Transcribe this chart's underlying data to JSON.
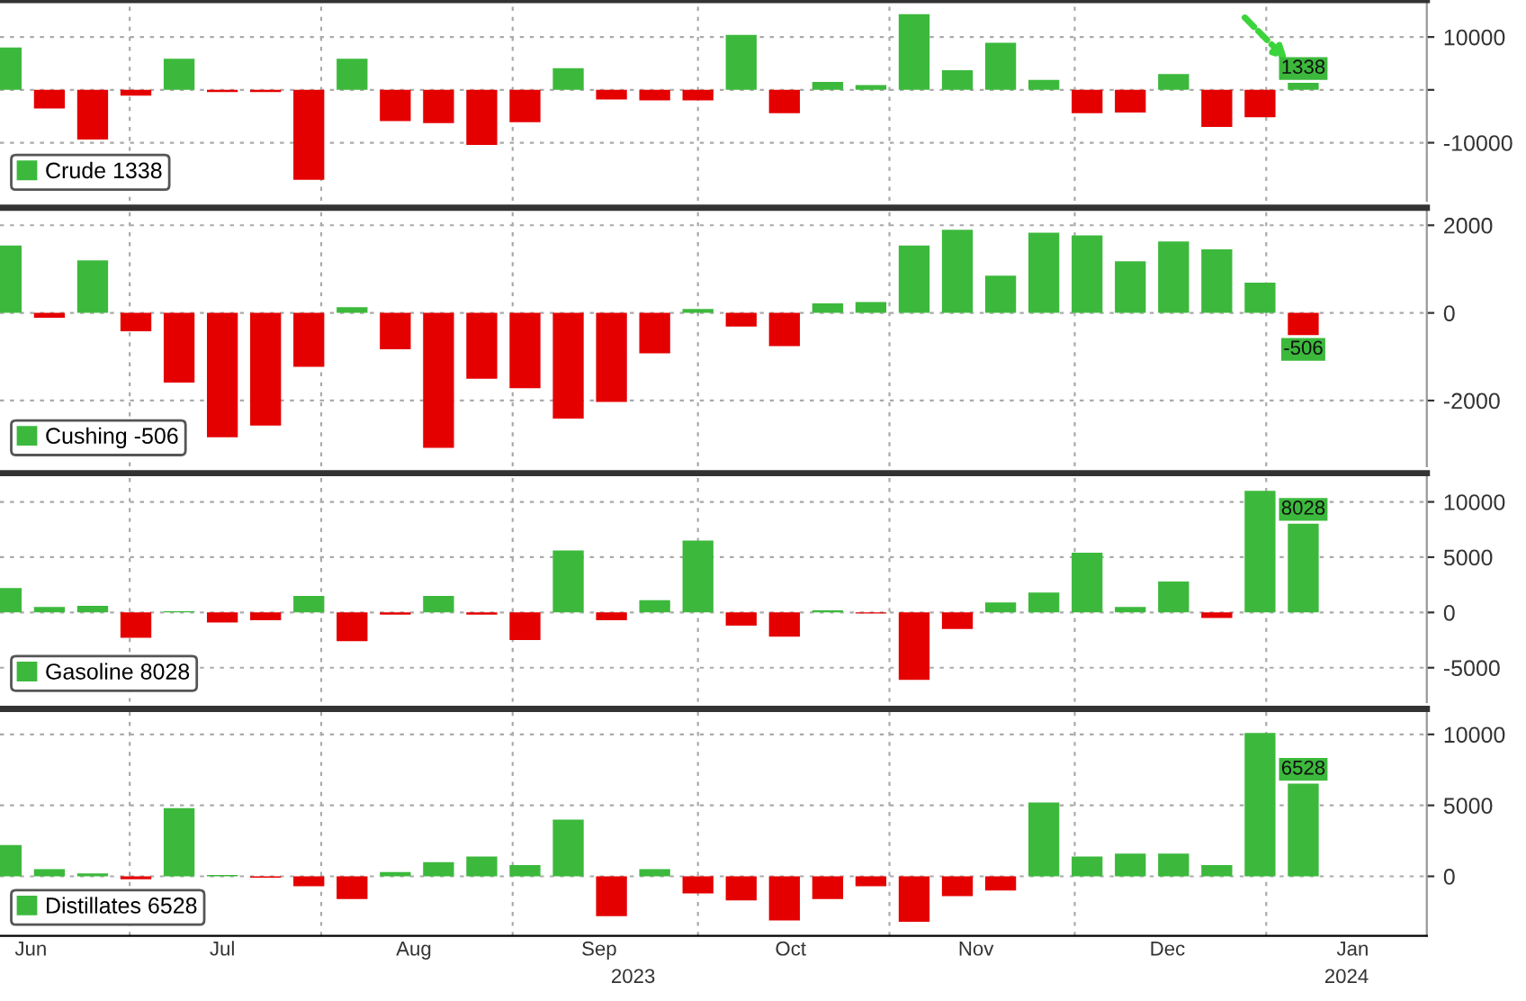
{
  "chart_data": [
    {
      "type": "bar",
      "x": [
        "2023-06-11",
        "2023-06-18",
        "2023-06-25",
        "2023-07-02",
        "2023-07-09",
        "2023-07-16",
        "2023-07-23",
        "2023-07-30",
        "2023-08-06",
        "2023-08-13",
        "2023-08-20",
        "2023-08-27",
        "2023-09-03",
        "2023-09-10",
        "2023-09-17",
        "2023-09-24",
        "2023-10-01",
        "2023-10-08",
        "2023-10-15",
        "2023-10-22",
        "2023-10-29",
        "2023-11-05",
        "2023-11-12",
        "2023-11-19",
        "2023-11-26",
        "2023-12-03",
        "2023-12-10",
        "2023-12-17",
        "2023-12-24",
        "2023-12-31",
        "2024-01-07"
      ],
      "series": [
        {
          "name": "Crude 1338",
          "color": "#3cb93c",
          "values": [
            8000,
            -3500,
            -9400,
            -1100,
            5900,
            -400,
            -400,
            -17000,
            5900,
            -5900,
            -6300,
            -10400,
            -6100,
            4100,
            -1800,
            -2000,
            -2000,
            10400,
            -4400,
            1500,
            900,
            14300,
            3700,
            8900,
            1900,
            -4400,
            -4300,
            3000,
            -7000,
            -5200,
            1338
          ],
          "colors": [
            "#3cb93c",
            "#e50000",
            "#e50000",
            "#e50000",
            "#3cb93c",
            "#e50000",
            "#e50000",
            "#e50000",
            "#3cb93c",
            "#e50000",
            "#e50000",
            "#e50000",
            "#e50000",
            "#3cb93c",
            "#e50000",
            "#e50000",
            "#e50000",
            "#3cb93c",
            "#e50000",
            "#3cb93c",
            "#3cb93c",
            "#3cb93c",
            "#3cb93c",
            "#3cb93c",
            "#3cb93c",
            "#e50000",
            "#e50000",
            "#3cb93c",
            "#e50000",
            "#e50000",
            "#3cb93c"
          ],
          "value_labels": [
            null,
            null,
            null,
            null,
            null,
            null,
            null,
            null,
            null,
            null,
            null,
            null,
            null,
            null,
            null,
            null,
            null,
            null,
            null,
            null,
            null,
            null,
            null,
            null,
            null,
            null,
            null,
            null,
            null,
            null,
            "1338"
          ]
        }
      ],
      "xlim": [
        "2023-06-10",
        "2024-01-27"
      ],
      "ylim": [
        -21000,
        17000
      ],
      "yticks": [
        -10000,
        {
          "value": 0,
          "label": null
        },
        10000
      ],
      "xticks": [
        {
          "value": "2023-07-01",
          "label": null
        },
        {
          "value": "2023-08-01",
          "label": null
        },
        {
          "value": "2023-09-01",
          "label": null
        },
        {
          "value": "2023-10-01",
          "label": null
        },
        {
          "value": "2023-11-01",
          "label": null
        },
        {
          "value": "2023-12-01",
          "label": null
        },
        {
          "value": "2024-01-01",
          "label": null
        }
      ],
      "tick_labels": "y",
      "grid": true,
      "legend": "bottom left"
    },
    {
      "type": "bar",
      "x": [
        "2023-06-11",
        "2023-06-18",
        "2023-06-25",
        "2023-07-02",
        "2023-07-09",
        "2023-07-16",
        "2023-07-23",
        "2023-07-30",
        "2023-08-06",
        "2023-08-13",
        "2023-08-20",
        "2023-08-27",
        "2023-09-03",
        "2023-09-10",
        "2023-09-17",
        "2023-09-24",
        "2023-10-01",
        "2023-10-08",
        "2023-10-15",
        "2023-10-22",
        "2023-10-29",
        "2023-11-05",
        "2023-11-12",
        "2023-11-19",
        "2023-11-26",
        "2023-12-03",
        "2023-12-10",
        "2023-12-17",
        "2023-12-24",
        "2023-12-31",
        "2024-01-07"
      ],
      "series": [
        {
          "name": "Cushing -506",
          "color": "#3cb93c",
          "values": [
            1540,
            -110,
            1200,
            -420,
            -1590,
            -2840,
            -2570,
            -1230,
            130,
            -830,
            -3080,
            -1500,
            -1720,
            -2410,
            -2030,
            -920,
            90,
            -310,
            -760,
            220,
            250,
            1540,
            1900,
            850,
            1830,
            1770,
            1180,
            1630,
            1450,
            690,
            -506
          ],
          "colors": [
            "#3cb93c",
            "#e50000",
            "#3cb93c",
            "#e50000",
            "#e50000",
            "#e50000",
            "#e50000",
            "#e50000",
            "#3cb93c",
            "#e50000",
            "#e50000",
            "#e50000",
            "#e50000",
            "#e50000",
            "#e50000",
            "#e50000",
            "#3cb93c",
            "#e50000",
            "#e50000",
            "#3cb93c",
            "#3cb93c",
            "#3cb93c",
            "#3cb93c",
            "#3cb93c",
            "#3cb93c",
            "#3cb93c",
            "#3cb93c",
            "#3cb93c",
            "#3cb93c",
            "#3cb93c",
            "#e50000"
          ],
          "value_labels": [
            null,
            null,
            null,
            null,
            null,
            null,
            null,
            null,
            null,
            null,
            null,
            null,
            null,
            null,
            null,
            null,
            null,
            null,
            null,
            null,
            null,
            null,
            null,
            null,
            null,
            null,
            null,
            null,
            null,
            null,
            "-506"
          ]
        }
      ],
      "xlim": [
        "2023-06-10",
        "2024-01-27"
      ],
      "ylim": [
        -3500,
        2400
      ],
      "yticks": [
        -2000,
        0,
        2000
      ],
      "xticks": [
        {
          "value": "2023-07-01",
          "label": null
        },
        {
          "value": "2023-08-01",
          "label": null
        },
        {
          "value": "2023-09-01",
          "label": null
        },
        {
          "value": "2023-10-01",
          "label": null
        },
        {
          "value": "2023-11-01",
          "label": null
        },
        {
          "value": "2023-12-01",
          "label": null
        },
        {
          "value": "2024-01-01",
          "label": null
        }
      ],
      "tick_labels": "y",
      "grid": true,
      "legend": "bottom left"
    },
    {
      "type": "bar",
      "x": [
        "2023-06-11",
        "2023-06-18",
        "2023-06-25",
        "2023-07-02",
        "2023-07-09",
        "2023-07-16",
        "2023-07-23",
        "2023-07-30",
        "2023-08-06",
        "2023-08-13",
        "2023-08-20",
        "2023-08-27",
        "2023-09-03",
        "2023-09-10",
        "2023-09-17",
        "2023-09-24",
        "2023-10-01",
        "2023-10-08",
        "2023-10-15",
        "2023-10-22",
        "2023-10-29",
        "2023-11-05",
        "2023-11-12",
        "2023-11-19",
        "2023-11-26",
        "2023-12-03",
        "2023-12-10",
        "2023-12-17",
        "2023-12-24",
        "2023-12-31",
        "2024-01-07"
      ],
      "series": [
        {
          "name": "Gasoline 8028",
          "color": "#3cb93c",
          "values": [
            2200,
            500,
            600,
            -2300,
            100,
            -900,
            -700,
            1500,
            -2600,
            -200,
            1500,
            -200,
            -2500,
            5600,
            -700,
            1100,
            6500,
            -1200,
            -2200,
            200,
            -100,
            -6100,
            -1500,
            900,
            1800,
            5400,
            500,
            2800,
            -500,
            11000,
            8028
          ],
          "colors": [
            "#3cb93c",
            "#3cb93c",
            "#3cb93c",
            "#e50000",
            "#3cb93c",
            "#e50000",
            "#e50000",
            "#3cb93c",
            "#e50000",
            "#e50000",
            "#3cb93c",
            "#e50000",
            "#e50000",
            "#3cb93c",
            "#e50000",
            "#3cb93c",
            "#3cb93c",
            "#e50000",
            "#e50000",
            "#3cb93c",
            "#e50000",
            "#e50000",
            "#e50000",
            "#3cb93c",
            "#3cb93c",
            "#3cb93c",
            "#3cb93c",
            "#3cb93c",
            "#e50000",
            "#3cb93c",
            "#3cb93c"
          ],
          "value_labels": [
            null,
            null,
            null,
            null,
            null,
            null,
            null,
            null,
            null,
            null,
            null,
            null,
            null,
            null,
            null,
            null,
            null,
            null,
            null,
            null,
            null,
            null,
            null,
            null,
            null,
            null,
            null,
            null,
            null,
            null,
            "8028"
          ]
        }
      ],
      "xlim": [
        "2023-06-10",
        "2024-01-27"
      ],
      "ylim": [
        -8100,
        12600
      ],
      "yticks": [
        -5000,
        0,
        5000,
        10000
      ],
      "xticks": [
        {
          "value": "2023-07-01",
          "label": null
        },
        {
          "value": "2023-08-01",
          "label": null
        },
        {
          "value": "2023-09-01",
          "label": null
        },
        {
          "value": "2023-10-01",
          "label": null
        },
        {
          "value": "2023-11-01",
          "label": null
        },
        {
          "value": "2023-12-01",
          "label": null
        },
        {
          "value": "2024-01-01",
          "label": null
        }
      ],
      "tick_labels": "y",
      "grid": true,
      "legend": "bottom left"
    },
    {
      "type": "bar",
      "x": [
        "2023-06-11",
        "2023-06-18",
        "2023-06-25",
        "2023-07-02",
        "2023-07-09",
        "2023-07-16",
        "2023-07-23",
        "2023-07-30",
        "2023-08-06",
        "2023-08-13",
        "2023-08-20",
        "2023-08-27",
        "2023-09-03",
        "2023-09-10",
        "2023-09-17",
        "2023-09-24",
        "2023-10-01",
        "2023-10-08",
        "2023-10-15",
        "2023-10-22",
        "2023-10-29",
        "2023-11-05",
        "2023-11-12",
        "2023-11-19",
        "2023-11-26",
        "2023-12-03",
        "2023-12-10",
        "2023-12-17",
        "2023-12-24",
        "2023-12-31",
        "2024-01-07"
      ],
      "series": [
        {
          "name": "Distillates 6528",
          "color": "#3cb93c",
          "values": [
            2200,
            500,
            200,
            -200,
            4800,
            100,
            -100,
            -700,
            -1600,
            300,
            1000,
            1400,
            800,
            4000,
            -2800,
            500,
            -1200,
            -1700,
            -3100,
            -1600,
            -700,
            -3200,
            -1400,
            -1000,
            5200,
            1400,
            1600,
            1600,
            800,
            10100,
            6528
          ],
          "colors": [
            "#3cb93c",
            "#3cb93c",
            "#3cb93c",
            "#e50000",
            "#3cb93c",
            "#3cb93c",
            "#e50000",
            "#e50000",
            "#e50000",
            "#3cb93c",
            "#3cb93c",
            "#3cb93c",
            "#3cb93c",
            "#3cb93c",
            "#e50000",
            "#3cb93c",
            "#e50000",
            "#e50000",
            "#e50000",
            "#e50000",
            "#e50000",
            "#e50000",
            "#e50000",
            "#e50000",
            "#3cb93c",
            "#3cb93c",
            "#3cb93c",
            "#3cb93c",
            "#3cb93c",
            "#3cb93c",
            "#3cb93c"
          ],
          "value_labels": [
            null,
            null,
            null,
            null,
            null,
            null,
            null,
            null,
            null,
            null,
            null,
            null,
            null,
            null,
            null,
            null,
            null,
            null,
            null,
            null,
            null,
            null,
            null,
            null,
            null,
            null,
            null,
            null,
            null,
            null,
            "6528"
          ]
        }
      ],
      "xlim": [
        "2023-06-10",
        "2024-01-27"
      ],
      "ylim": [
        -4200,
        11800
      ],
      "yticks": [
        0,
        5000,
        10000
      ],
      "xticks": [
        {
          "value": "2023-06-15",
          "label": "Jun"
        },
        {
          "value": "2023-07-01",
          "label": null
        },
        {
          "value": "2023-07-16",
          "label": "Jul"
        },
        {
          "value": "2023-08-01",
          "label": null
        },
        {
          "value": "2023-08-16",
          "label": "Aug"
        },
        {
          "value": "2023-09-01",
          "label": null
        },
        {
          "value": "2023-09-15",
          "label": "Sep"
        },
        {
          "value": "2023-10-01",
          "label": null
        },
        {
          "value": "2023-10-16",
          "label": "Oct"
        },
        {
          "value": "2023-11-01",
          "label": null
        },
        {
          "value": "2023-11-15",
          "label": "Nov"
        },
        {
          "value": "2023-12-01",
          "label": null
        },
        {
          "value": "2023-12-16",
          "label": "Dec"
        },
        {
          "value": "2024-01-01",
          "label": null
        },
        {
          "value": "2024-01-15",
          "label": "Jan"
        }
      ],
      "annotations": [
        "2023",
        "2024"
      ],
      "grid": true,
      "legend": "bottom left"
    }
  ]
}
